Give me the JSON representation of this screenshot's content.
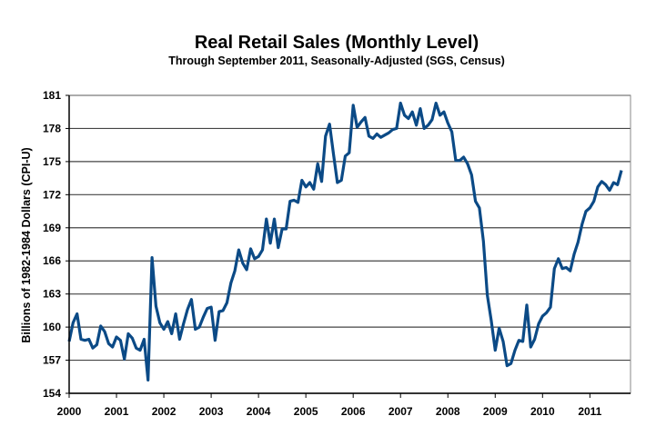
{
  "chart_data": {
    "type": "line",
    "title": "Real Retail Sales (Monthly Level)",
    "subtitle": "Through September 2011, Seasonally-Adjusted (SGS, Census)",
    "xlabel": "",
    "ylabel": "Billions of 1982-1984 Dollars (CPI-U)",
    "ylim": [
      154,
      181
    ],
    "yticks": [
      "154",
      "157",
      "160",
      "163",
      "166",
      "169",
      "172",
      "175",
      "178",
      "181"
    ],
    "xticks": [
      "2000",
      "2001",
      "2002",
      "2003",
      "2004",
      "2005",
      "2006",
      "2007",
      "2008",
      "2009",
      "2010",
      "2011"
    ],
    "grid": true,
    "start": "2000-01",
    "frequency": "monthly",
    "line_color": "#0b4a86",
    "series": [
      {
        "name": "Real Retail Sales",
        "values": [
          158.7,
          160.4,
          161.2,
          158.9,
          158.8,
          158.9,
          158.1,
          158.4,
          160.1,
          159.6,
          158.5,
          158.2,
          159.1,
          158.8,
          157.1,
          159.4,
          159.0,
          158.1,
          157.9,
          158.9,
          155.2,
          166.3,
          161.9,
          160.4,
          159.8,
          160.5,
          159.4,
          161.2,
          158.9,
          160.3,
          161.6,
          162.5,
          159.8,
          160.0,
          160.9,
          161.7,
          161.8,
          158.8,
          161.4,
          161.5,
          162.2,
          164.0,
          165.1,
          167.0,
          165.8,
          165.2,
          167.1,
          166.2,
          166.4,
          167.0,
          169.8,
          167.6,
          169.8,
          167.2,
          168.9,
          168.9,
          171.4,
          171.5,
          171.3,
          173.3,
          172.7,
          173.1,
          172.5,
          174.8,
          173.2,
          177.3,
          178.4,
          175.7,
          173.1,
          173.3,
          175.5,
          175.8,
          180.1,
          178.1,
          178.6,
          179.0,
          177.3,
          177.1,
          177.5,
          177.2,
          177.4,
          177.6,
          177.9,
          178.0,
          180.3,
          179.2,
          178.9,
          179.5,
          178.3,
          179.8,
          178.0,
          178.3,
          178.8,
          180.3,
          179.2,
          179.5,
          178.5,
          177.7,
          175.1,
          175.1,
          175.4,
          174.8,
          173.8,
          171.4,
          170.8,
          167.8,
          162.9,
          160.6,
          157.9,
          159.9,
          158.7,
          156.5,
          156.7,
          157.9,
          158.8,
          158.7,
          162.0,
          158.2,
          158.9,
          160.3,
          161.0,
          161.3,
          161.8,
          165.3,
          166.2,
          165.3,
          165.4,
          165.1,
          166.6,
          167.7,
          169.3,
          170.5,
          170.8,
          171.4,
          172.7,
          173.2,
          172.9,
          172.4,
          173.1,
          172.9,
          174.2
        ]
      }
    ]
  }
}
